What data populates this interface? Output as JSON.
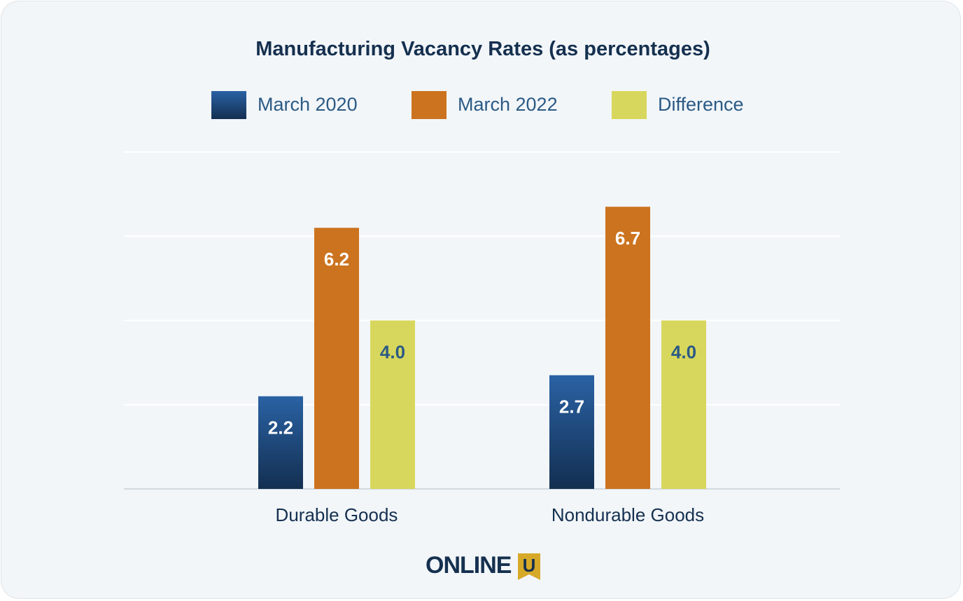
{
  "chart_data": {
    "type": "bar",
    "title": "Manufacturing Vacancy Rates (as percentages)",
    "categories": [
      "Durable Goods",
      "Nondurable Goods"
    ],
    "series": [
      {
        "name": "March 2020",
        "values": [
          2.2,
          2.7
        ],
        "color": "#1f4e82"
      },
      {
        "name": "March 2022",
        "values": [
          6.2,
          6.7
        ],
        "color": "#cc731f"
      },
      {
        "name": "Difference",
        "values": [
          4.0,
          4.0
        ],
        "color": "#d8d75d"
      }
    ],
    "data_labels": [
      [
        "2.2",
        "2.7"
      ],
      [
        "6.2",
        "6.7"
      ],
      [
        "4.0",
        "4.0"
      ]
    ],
    "ylim": [
      0,
      8
    ],
    "grid": true,
    "legend_position": "top-center"
  },
  "legend": [
    {
      "label": "March 2020"
    },
    {
      "label": "March 2022"
    },
    {
      "label": "Difference"
    }
  ],
  "brand": {
    "logo_text": "ONLINE",
    "logo_badge": "U",
    "badge_color": "#d6a928"
  }
}
